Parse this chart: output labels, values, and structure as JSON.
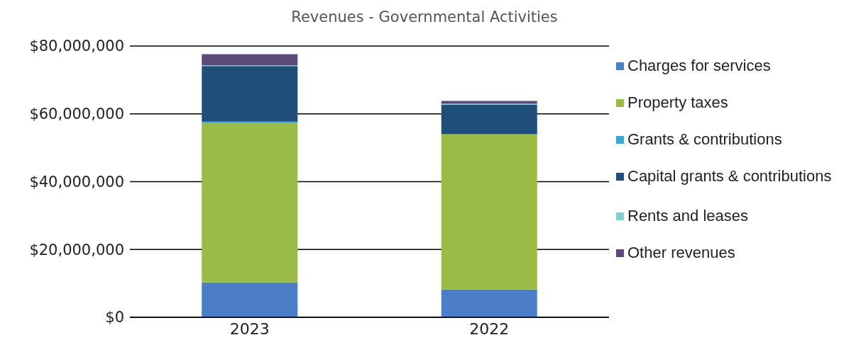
{
  "chart_data": {
    "type": "bar",
    "title": "Revenues - Governmental Activities",
    "categories": [
      "2023",
      "2022"
    ],
    "stacked": true,
    "series": [
      {
        "name": "Charges for services",
        "color": "#4a7fc8",
        "values": [
          10300000.0,
          8200000.0
        ]
      },
      {
        "name": "Property taxes",
        "color": "#9bbb47",
        "values": [
          47000000.0,
          45700000.0
        ]
      },
      {
        "name": "Grants & contributions",
        "color": "#3ba7d6",
        "values": [
          400000.0,
          200000.0
        ]
      },
      {
        "name": "Capital grants & contributions",
        "color": "#1f4e79",
        "values": [
          16400000.0,
          8600000.0
        ]
      },
      {
        "name": "Rents and leases",
        "color": "#7dd0d0",
        "values": [
          200000.0,
          300000.0
        ]
      },
      {
        "name": "Other revenues",
        "color": "#5c4a7a",
        "values": [
          3300000.0,
          800000.0
        ]
      }
    ],
    "ylim": [
      0,
      80000000
    ],
    "yticks": [
      {
        "value": 0,
        "label": "$0"
      },
      {
        "value": 20000000,
        "label": "$20,000,000"
      },
      {
        "value": 40000000,
        "label": "$40,000,000"
      },
      {
        "value": 60000000,
        "label": "$60,000,000"
      },
      {
        "value": 80000000,
        "label": "$80,000,000"
      }
    ],
    "grid": "y",
    "legend": "right"
  }
}
